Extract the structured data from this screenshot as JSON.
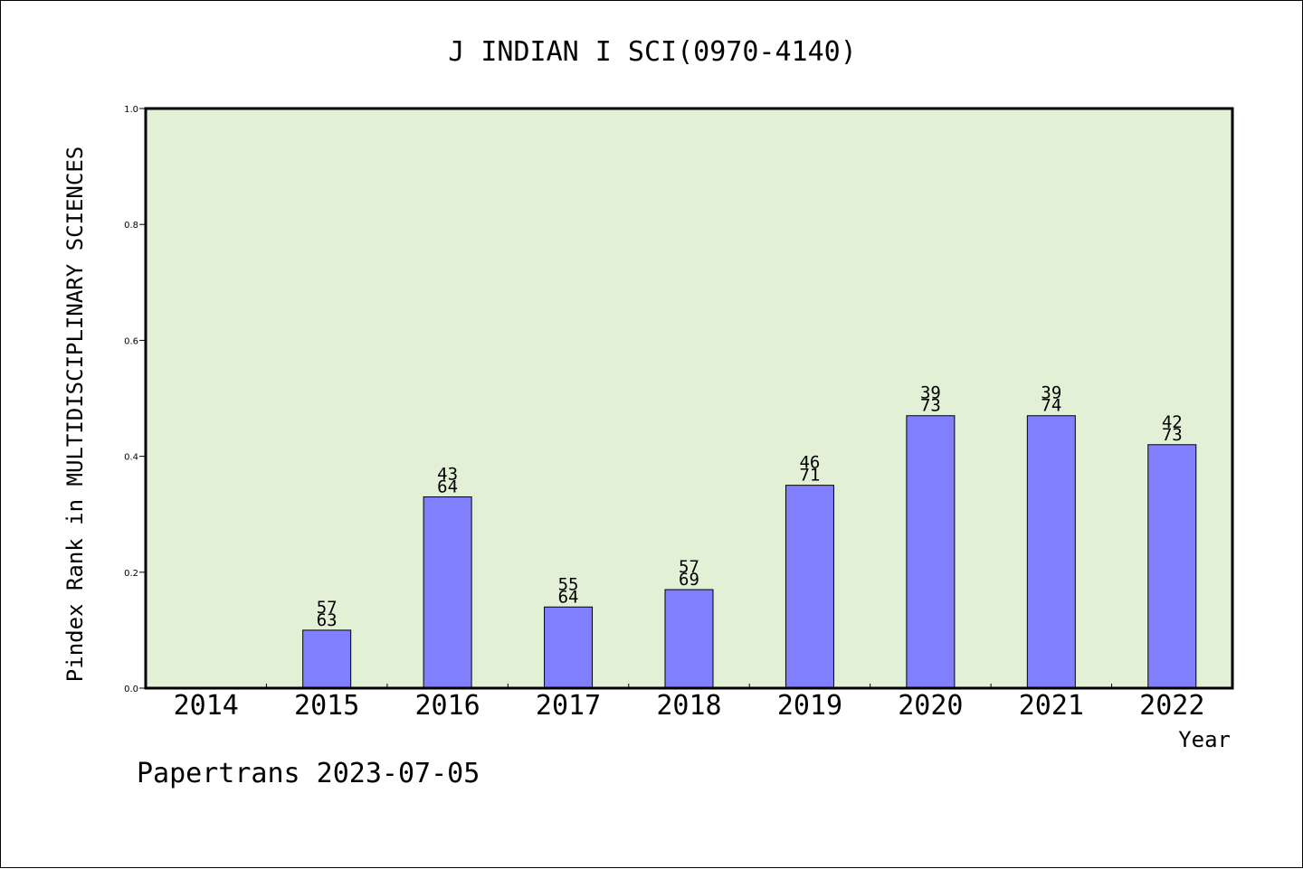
{
  "chart_data": {
    "type": "bar",
    "title": "J INDIAN I SCI(0970-4140)",
    "xlabel": "Year",
    "ylabel": "Pindex Rank in MULTIDISCIPLINARY SCIENCES",
    "ylim": [
      0,
      1.0
    ],
    "yticks": [
      "0.0",
      "0.2",
      "0.4",
      "0.6",
      "0.8",
      "1.0"
    ],
    "categories": [
      "2014",
      "2015",
      "2016",
      "2017",
      "2018",
      "2019",
      "2020",
      "2021",
      "2022"
    ],
    "values": [
      null,
      0.1,
      0.33,
      0.14,
      0.17,
      0.35,
      0.47,
      0.47,
      0.42
    ],
    "labels_top": [
      "",
      "57",
      "43",
      "55",
      "57",
      "46",
      "39",
      "39",
      "42"
    ],
    "labels_bottom": [
      "",
      "63",
      "64",
      "64",
      "69",
      "71",
      "73",
      "74",
      "73"
    ],
    "grid": false,
    "legend": "none",
    "colors": {
      "plot_background": "#e2f0d6",
      "bar_fill": "#8080ff",
      "bar_stroke": "#000000"
    }
  },
  "footer": {
    "credit": "Papertrans 2023-07-05"
  }
}
